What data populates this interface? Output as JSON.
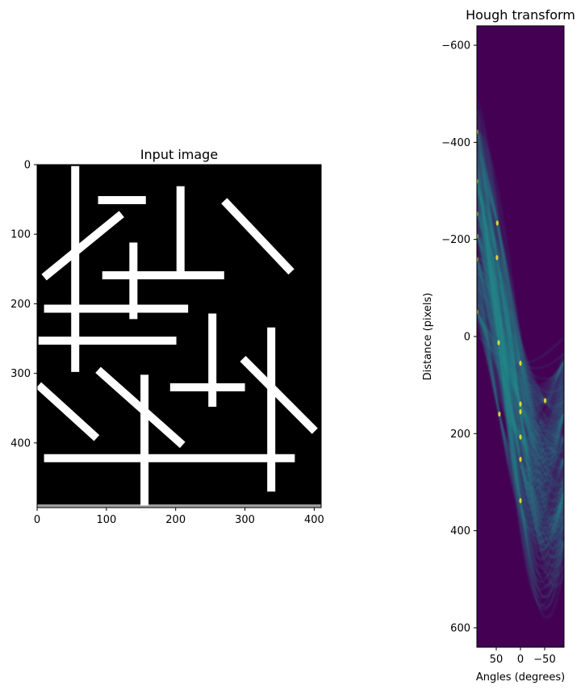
{
  "chart_data": [
    {
      "type": "image",
      "title": "Input image",
      "xlabel": "",
      "ylabel": "",
      "xlim": [
        0,
        410
      ],
      "ylim": [
        493,
        0
      ],
      "xticks": [
        "0",
        "100",
        "200",
        "300",
        "400"
      ],
      "yticks": [
        "0",
        "100",
        "200",
        "300",
        "400"
      ],
      "background_color": "#000000",
      "line_color": "#ffffff",
      "segments": [
        {
          "x1": 55,
          "y1": 2,
          "x2": 55,
          "y2": 298
        },
        {
          "x1": 88,
          "y1": 51,
          "x2": 157,
          "y2": 51
        },
        {
          "x1": 122,
          "y1": 71,
          "x2": 10,
          "y2": 162
        },
        {
          "x1": 207,
          "y1": 31,
          "x2": 207,
          "y2": 158
        },
        {
          "x1": 270,
          "y1": 52,
          "x2": 367,
          "y2": 154
        },
        {
          "x1": 139,
          "y1": 112,
          "x2": 139,
          "y2": 222
        },
        {
          "x1": 94,
          "y1": 159,
          "x2": 270,
          "y2": 159
        },
        {
          "x1": 10,
          "y1": 207,
          "x2": 218,
          "y2": 207
        },
        {
          "x1": 2,
          "y1": 253,
          "x2": 201,
          "y2": 253
        },
        {
          "x1": 253,
          "y1": 214,
          "x2": 253,
          "y2": 348
        },
        {
          "x1": 192,
          "y1": 320,
          "x2": 300,
          "y2": 320
        },
        {
          "x1": 338,
          "y1": 234,
          "x2": 338,
          "y2": 470
        },
        {
          "x1": 297,
          "y1": 279,
          "x2": 401,
          "y2": 383
        },
        {
          "x1": 88,
          "y1": 295,
          "x2": 210,
          "y2": 403
        },
        {
          "x1": 155,
          "y1": 302,
          "x2": 155,
          "y2": 490
        },
        {
          "x1": 2,
          "y1": 317,
          "x2": 86,
          "y2": 393
        },
        {
          "x1": 10,
          "y1": 422,
          "x2": 372,
          "y2": 422
        }
      ]
    },
    {
      "type": "heatmap",
      "title": "Hough transform",
      "xlabel": "Angles (degrees)",
      "ylabel": "Distance (pixels)",
      "xlim": [
        90,
        -90
      ],
      "ylim": [
        640,
        -640
      ],
      "xticks": [
        "50",
        "0",
        "−50"
      ],
      "yticks": [
        "−600",
        "−400",
        "−200",
        "0",
        "200",
        "400",
        "600"
      ],
      "colormap": "viridis",
      "colors": {
        "low": "#440154",
        "mid": "#21918c",
        "high": "#fde725"
      }
    }
  ]
}
